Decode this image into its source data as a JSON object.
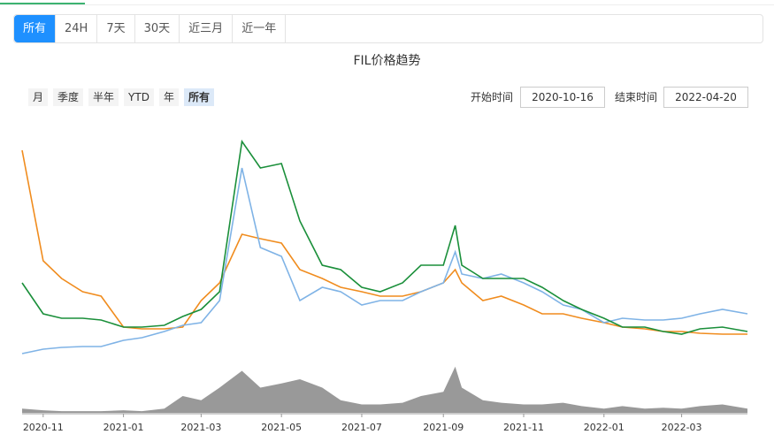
{
  "tabs": {
    "items": [
      "所有",
      "24H",
      "7天",
      "30天",
      "近三月",
      "近一年"
    ],
    "active": 0
  },
  "ranges": {
    "items": [
      "月",
      "季度",
      "半年",
      "YTD",
      "年",
      "所有"
    ],
    "active": 5
  },
  "dates": {
    "start_label": "开始时间",
    "start": "2020-10-16",
    "end_label": "结束时间",
    "end": "2022-04-20"
  },
  "chart_data": {
    "type": "line",
    "title": "FIL价格趋势",
    "x": [
      "2020-10-16",
      "2020-11-01",
      "2020-11-15",
      "2020-12-01",
      "2020-12-15",
      "2021-01-01",
      "2021-01-15",
      "2021-02-01",
      "2021-02-15",
      "2021-03-01",
      "2021-03-15",
      "2021-04-01",
      "2021-04-15",
      "2021-05-01",
      "2021-05-15",
      "2021-06-01",
      "2021-06-15",
      "2021-07-01",
      "2021-07-15",
      "2021-08-01",
      "2021-08-15",
      "2021-09-01",
      "2021-09-10",
      "2021-09-15",
      "2021-10-01",
      "2021-10-15",
      "2021-11-01",
      "2021-11-15",
      "2021-12-01",
      "2021-12-15",
      "2022-01-01",
      "2022-01-15",
      "2022-02-01",
      "2022-02-15",
      "2022-03-01",
      "2022-03-15",
      "2022-04-01",
      "2022-04-20"
    ],
    "xlim": [
      "2020-10-16",
      "2022-04-20"
    ],
    "xticks": [
      {
        "value": "2020-11-01",
        "label": "2020-11"
      },
      {
        "value": "2021-01-01",
        "label": "2021-01"
      },
      {
        "value": "2021-03-01",
        "label": "2021-03"
      },
      {
        "value": "2021-05-01",
        "label": "2021-05"
      },
      {
        "value": "2021-07-01",
        "label": "2021-07"
      },
      {
        "value": "2021-09-01",
        "label": "2021-09"
      },
      {
        "value": "2021-11-01",
        "label": "2021-11"
      },
      {
        "value": "2022-01-01",
        "label": "2022-01"
      },
      {
        "value": "2022-03-01",
        "label": "2022-03"
      }
    ],
    "ylim": [
      0,
      260
    ],
    "y2lim": [
      0,
      60
    ],
    "series": [
      {
        "color": "#f08c1e",
        "values": [
          230,
          105,
          85,
          70,
          65,
          30,
          28,
          28,
          30,
          60,
          80,
          135,
          130,
          125,
          95,
          85,
          75,
          70,
          65,
          65,
          70,
          80,
          95,
          80,
          60,
          65,
          55,
          45,
          45,
          40,
          35,
          30,
          28,
          25,
          25,
          23,
          22,
          22
        ]
      },
      {
        "color": "#7fb3e6",
        "values": [
          0,
          5,
          7,
          8,
          8,
          15,
          18,
          25,
          32,
          35,
          60,
          210,
          120,
          110,
          60,
          75,
          70,
          55,
          60,
          60,
          70,
          80,
          115,
          90,
          85,
          90,
          80,
          70,
          55,
          50,
          35,
          40,
          38,
          38,
          40,
          45,
          50,
          45
        ]
      },
      {
        "color": "#1a8f3a",
        "values": [
          80,
          45,
          40,
          40,
          38,
          30,
          30,
          32,
          42,
          50,
          70,
          240,
          210,
          215,
          150,
          100,
          95,
          75,
          70,
          80,
          100,
          100,
          145,
          100,
          85,
          85,
          85,
          75,
          60,
          50,
          40,
          30,
          30,
          25,
          22,
          28,
          30,
          25
        ]
      },
      {
        "color": "#999999",
        "axis": "y2",
        "values": [
          5,
          3,
          2,
          2,
          2,
          3,
          2,
          5,
          20,
          15,
          30,
          50,
          30,
          35,
          40,
          30,
          15,
          10,
          10,
          12,
          20,
          25,
          55,
          30,
          15,
          12,
          10,
          10,
          12,
          8,
          5,
          8,
          5,
          6,
          5,
          8,
          10,
          5
        ]
      }
    ]
  }
}
